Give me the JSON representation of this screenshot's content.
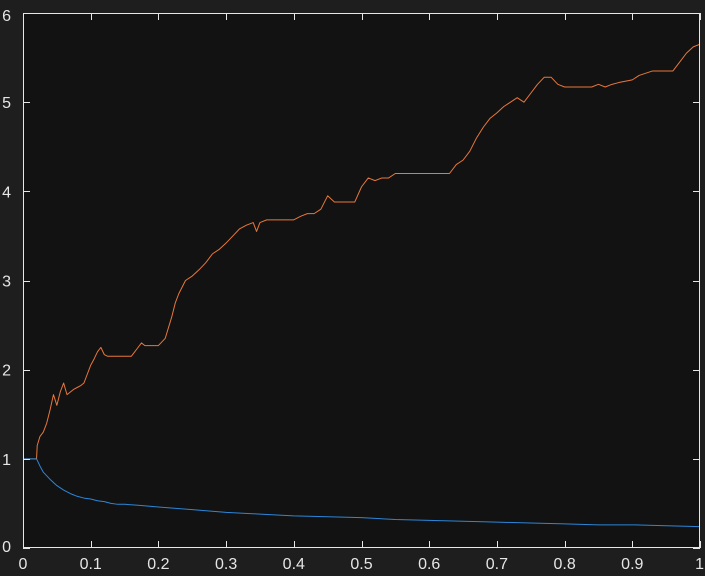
{
  "colors": {
    "figure_background": "#1e1e1e",
    "plot_background": "#121212",
    "axis": "#e6e6e6",
    "series_orange": "#e8773a",
    "series_blue": "#2e86d8"
  },
  "chart_data": {
    "type": "line",
    "title": "",
    "xlabel": "",
    "ylabel": "",
    "xlim": [
      0,
      1
    ],
    "ylim": [
      0,
      6
    ],
    "grid": false,
    "legend": "none",
    "x_ticks": [
      0,
      0.1,
      0.2,
      0.3,
      0.4,
      0.5,
      0.6,
      0.7,
      0.8,
      0.9,
      1
    ],
    "x_tick_labels": [
      "0",
      "0.1",
      "0.2",
      "0.3",
      "0.4",
      "0.5",
      "0.6",
      "0.7",
      "0.8",
      "0.9",
      "1"
    ],
    "y_ticks": [
      0,
      1,
      2,
      3,
      4,
      5,
      6
    ],
    "y_tick_labels": [
      "0",
      "1",
      "2",
      "3",
      "4",
      "5",
      "6"
    ],
    "series": [
      {
        "color": "#e8773a",
        "x": [
          0,
          0.02,
          0.021,
          0.025,
          0.03,
          0.035,
          0.04,
          0.045,
          0.05,
          0.055,
          0.06,
          0.065,
          0.07,
          0.075,
          0.08,
          0.085,
          0.09,
          0.095,
          0.1,
          0.105,
          0.11,
          0.115,
          0.12,
          0.125,
          0.13,
          0.135,
          0.14,
          0.15,
          0.16,
          0.17,
          0.175,
          0.18,
          0.19,
          0.2,
          0.21,
          0.22,
          0.225,
          0.23,
          0.24,
          0.25,
          0.26,
          0.27,
          0.28,
          0.29,
          0.3,
          0.31,
          0.32,
          0.33,
          0.34,
          0.345,
          0.35,
          0.36,
          0.37,
          0.38,
          0.39,
          0.4,
          0.41,
          0.42,
          0.43,
          0.44,
          0.45,
          0.46,
          0.47,
          0.48,
          0.49,
          0.5,
          0.51,
          0.52,
          0.53,
          0.54,
          0.55,
          0.56,
          0.6,
          0.63,
          0.64,
          0.65,
          0.66,
          0.67,
          0.68,
          0.69,
          0.7,
          0.71,
          0.72,
          0.73,
          0.74,
          0.75,
          0.76,
          0.77,
          0.78,
          0.79,
          0.8,
          0.82,
          0.84,
          0.85,
          0.86,
          0.87,
          0.88,
          0.9,
          0.91,
          0.93,
          0.95,
          0.96,
          0.97,
          0.98,
          0.99,
          1
        ],
        "y": [
          1,
          1,
          1.15,
          1.25,
          1.3,
          1.4,
          1.55,
          1.72,
          1.6,
          1.75,
          1.85,
          1.72,
          1.75,
          1.78,
          1.8,
          1.82,
          1.85,
          1.95,
          2.05,
          2.12,
          2.2,
          2.25,
          2.17,
          2.15,
          2.15,
          2.15,
          2.15,
          2.15,
          2.15,
          2.25,
          2.3,
          2.27,
          2.27,
          2.27,
          2.35,
          2.6,
          2.75,
          2.85,
          3.0,
          3.05,
          3.12,
          3.2,
          3.3,
          3.35,
          3.42,
          3.5,
          3.58,
          3.62,
          3.65,
          3.55,
          3.65,
          3.68,
          3.68,
          3.68,
          3.68,
          3.68,
          3.72,
          3.75,
          3.75,
          3.8,
          3.95,
          3.88,
          3.88,
          3.88,
          3.88,
          4.05,
          4.15,
          4.12,
          4.15,
          4.15,
          4.2,
          4.2,
          4.2,
          4.2,
          4.3,
          4.35,
          4.45,
          4.6,
          4.72,
          4.82,
          4.88,
          4.95,
          5.0,
          5.05,
          5.0,
          5.1,
          5.2,
          5.28,
          5.28,
          5.2,
          5.17,
          5.17,
          5.17,
          5.2,
          5.17,
          5.2,
          5.22,
          5.25,
          5.3,
          5.35,
          5.35,
          5.35,
          5.45,
          5.55,
          5.62,
          5.65
        ]
      },
      {
        "color": "#2e86d8",
        "x": [
          0,
          0.02,
          0.025,
          0.03,
          0.04,
          0.05,
          0.06,
          0.07,
          0.08,
          0.09,
          0.1,
          0.11,
          0.12,
          0.13,
          0.14,
          0.15,
          0.17,
          0.2,
          0.25,
          0.3,
          0.35,
          0.4,
          0.45,
          0.5,
          0.55,
          0.6,
          0.65,
          0.7,
          0.75,
          0.8,
          0.85,
          0.9,
          0.95,
          1
        ],
        "y": [
          1,
          1,
          0.92,
          0.85,
          0.77,
          0.7,
          0.65,
          0.61,
          0.58,
          0.56,
          0.55,
          0.53,
          0.52,
          0.5,
          0.49,
          0.49,
          0.48,
          0.46,
          0.43,
          0.4,
          0.38,
          0.36,
          0.35,
          0.34,
          0.32,
          0.31,
          0.3,
          0.29,
          0.28,
          0.27,
          0.26,
          0.26,
          0.25,
          0.24
        ]
      }
    ]
  }
}
